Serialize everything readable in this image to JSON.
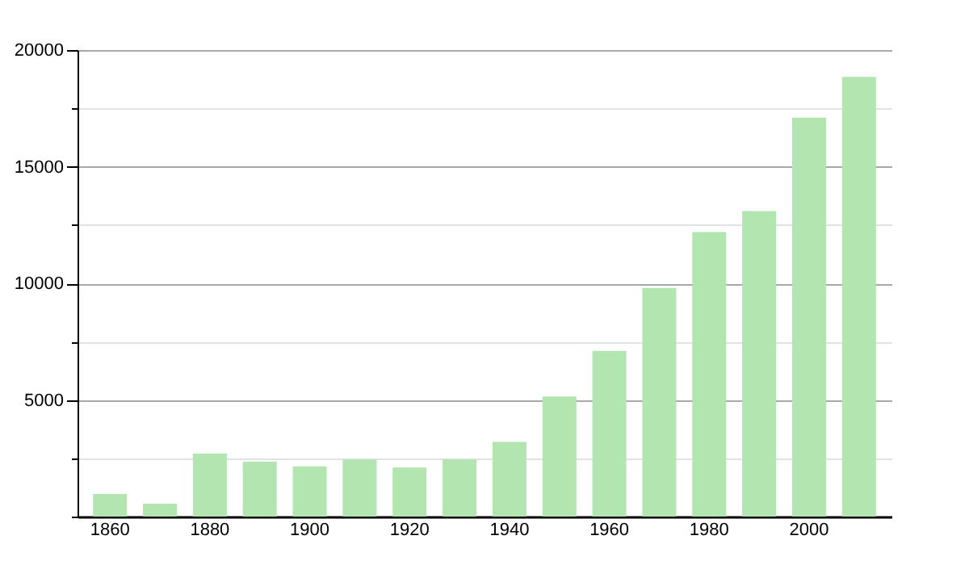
{
  "chart_data": {
    "type": "bar",
    "categories": [
      "1860",
      null,
      "1880",
      null,
      "1900",
      null,
      "1920",
      null,
      "1940",
      null,
      "1960",
      null,
      "1980",
      null,
      "2000",
      null
    ],
    "values": [
      970,
      550,
      2700,
      2350,
      2150,
      2450,
      2100,
      2450,
      3200,
      5150,
      7100,
      9800,
      12200,
      13100,
      17100,
      18850
    ],
    "color": "#b2e5b0",
    "ylim": [
      0,
      20000
    ],
    "yticks": [
      {
        "value": 0,
        "label": null
      },
      {
        "value": 2500,
        "label": null
      },
      5000,
      {
        "value": 7500,
        "label": null
      },
      10000,
      {
        "value": 12500,
        "label": null
      },
      15000,
      {
        "value": 17500,
        "label": null
      },
      20000
    ],
    "grid": true
  }
}
